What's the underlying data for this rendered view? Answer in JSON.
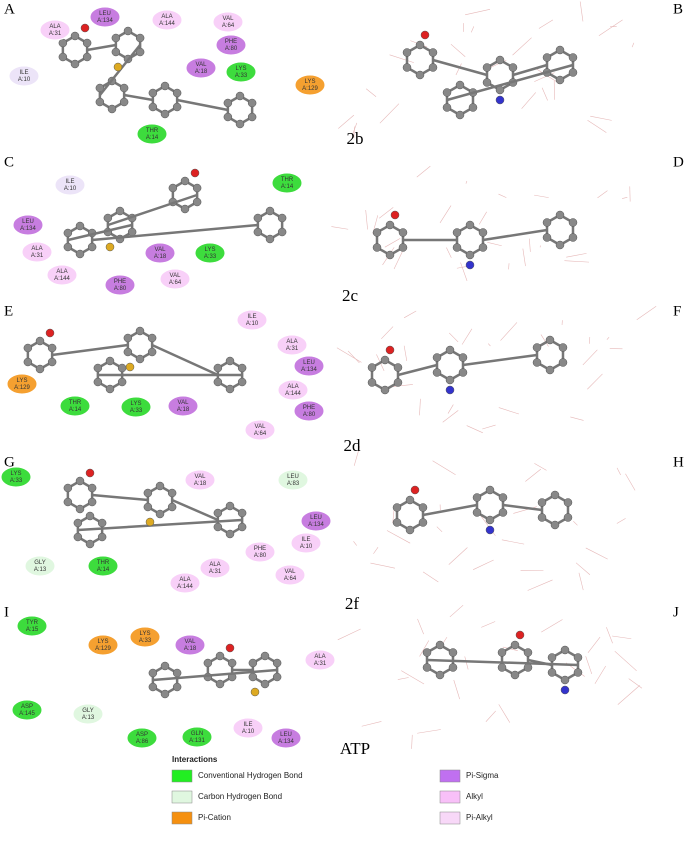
{
  "panel_letters": [
    "A",
    "B",
    "C",
    "D",
    "E",
    "F",
    "G",
    "H",
    "I",
    "J"
  ],
  "compound_labels": [
    "2b",
    "2c",
    "2d",
    "2f",
    "ATP"
  ],
  "panels": [
    {
      "residues": [
        {
          "name": "ALA",
          "id": "A:31",
          "color": "#f8d0f8"
        },
        {
          "name": "LEU",
          "id": "A:134",
          "color": "#c77de0"
        },
        {
          "name": "ALA",
          "id": "A:144",
          "color": "#f8d0f8"
        },
        {
          "name": "VAL",
          "id": "A:64",
          "color": "#f8d0f8"
        },
        {
          "name": "PHE",
          "id": "A:80",
          "color": "#c77de0"
        },
        {
          "name": "VAL",
          "id": "A:18",
          "color": "#c77de0"
        },
        {
          "name": "LYS",
          "id": "A:33",
          "color": "#3ddc3d"
        },
        {
          "name": "LYS",
          "id": "A:129",
          "color": "#f5a030"
        },
        {
          "name": "ILE",
          "id": "A:10",
          "color": "#ece4f8"
        },
        {
          "name": "THR",
          "id": "A:14",
          "color": "#3ddc3d"
        }
      ]
    },
    {
      "residues": [
        {
          "name": "ILE",
          "id": "A:10",
          "color": "#ece4f8"
        },
        {
          "name": "THR",
          "id": "A:14",
          "color": "#3ddc3d"
        },
        {
          "name": "LEU",
          "id": "A:134",
          "color": "#c77de0"
        },
        {
          "name": "ALA",
          "id": "A:31",
          "color": "#f8d0f8"
        },
        {
          "name": "VAL",
          "id": "A:18",
          "color": "#c77de0"
        },
        {
          "name": "LYS",
          "id": "A:33",
          "color": "#3ddc3d"
        },
        {
          "name": "ALA",
          "id": "A:144",
          "color": "#f8d0f8"
        },
        {
          "name": "PHE",
          "id": "A:80",
          "color": "#c77de0"
        },
        {
          "name": "VAL",
          "id": "A:64",
          "color": "#f8d0f8"
        }
      ]
    },
    {
      "residues": [
        {
          "name": "ILE",
          "id": "A:10",
          "color": "#f8d0f8"
        },
        {
          "name": "ALA",
          "id": "A:31",
          "color": "#f8d0f8"
        },
        {
          "name": "LEU",
          "id": "A:134",
          "color": "#c77de0"
        },
        {
          "name": "ALA",
          "id": "A:144",
          "color": "#f8d0f8"
        },
        {
          "name": "PHE",
          "id": "A:80",
          "color": "#c77de0"
        },
        {
          "name": "VAL",
          "id": "A:64",
          "color": "#f8d0f8"
        },
        {
          "name": "LYS",
          "id": "A:129",
          "color": "#f5a030"
        },
        {
          "name": "THR",
          "id": "A:14",
          "color": "#3ddc3d"
        },
        {
          "name": "LYS",
          "id": "A:33",
          "color": "#3ddc3d"
        },
        {
          "name": "VAL",
          "id": "A:18",
          "color": "#c77de0"
        }
      ]
    },
    {
      "residues": [
        {
          "name": "LYS",
          "id": "A:33",
          "color": "#3ddc3d"
        },
        {
          "name": "VAL",
          "id": "A:18",
          "color": "#f8d0f8"
        },
        {
          "name": "LEU",
          "id": "A:83",
          "color": "#e0f7e0"
        },
        {
          "name": "LEU",
          "id": "A:134",
          "color": "#c77de0"
        },
        {
          "name": "ILE",
          "id": "A:10",
          "color": "#f8d0f8"
        },
        {
          "name": "PHE",
          "id": "A:80",
          "color": "#f8d0f8"
        },
        {
          "name": "ALA",
          "id": "A:31",
          "color": "#f8d0f8"
        },
        {
          "name": "VAL",
          "id": "A:64",
          "color": "#f8d0f8"
        },
        {
          "name": "ALA",
          "id": "A:144",
          "color": "#f8d0f8"
        },
        {
          "name": "GLY",
          "id": "A:13",
          "color": "#e0f7e0"
        },
        {
          "name": "THR",
          "id": "A:14",
          "color": "#3ddc3d"
        }
      ]
    },
    {
      "residues": [
        {
          "name": "TYR",
          "id": "A:15",
          "color": "#3ddc3d"
        },
        {
          "name": "LYS",
          "id": "A:129",
          "color": "#f5a030"
        },
        {
          "name": "LYS",
          "id": "A:33",
          "color": "#f5a030"
        },
        {
          "name": "VAL",
          "id": "A:18",
          "color": "#c77de0"
        },
        {
          "name": "ALA",
          "id": "A:31",
          "color": "#f8d0f8"
        },
        {
          "name": "ASP",
          "id": "A:145",
          "color": "#3ddc3d"
        },
        {
          "name": "GLY",
          "id": "A:13",
          "color": "#e0f7e0"
        },
        {
          "name": "ASP",
          "id": "A:86",
          "color": "#3ddc3d"
        },
        {
          "name": "GLN",
          "id": "A:131",
          "color": "#3ddc3d"
        },
        {
          "name": "ILE",
          "id": "A:10",
          "color": "#f8d0f8"
        },
        {
          "name": "LEU",
          "id": "A:134",
          "color": "#c77de0"
        }
      ]
    }
  ],
  "legend": {
    "title": "Interactions",
    "items": [
      {
        "label": "Conventional Hydrogen Bond",
        "color": "#22ee22"
      },
      {
        "label": "Carbon Hydrogen Bond",
        "color": "#e0f7e0"
      },
      {
        "label": "Pi-Cation",
        "color": "#f59010"
      },
      {
        "label": "Pi-Sigma",
        "color": "#c070f0"
      },
      {
        "label": "Alkyl",
        "color": "#f8c0f8"
      },
      {
        "label": "Pi-Alkyl",
        "color": "#f8d8f8"
      }
    ]
  }
}
